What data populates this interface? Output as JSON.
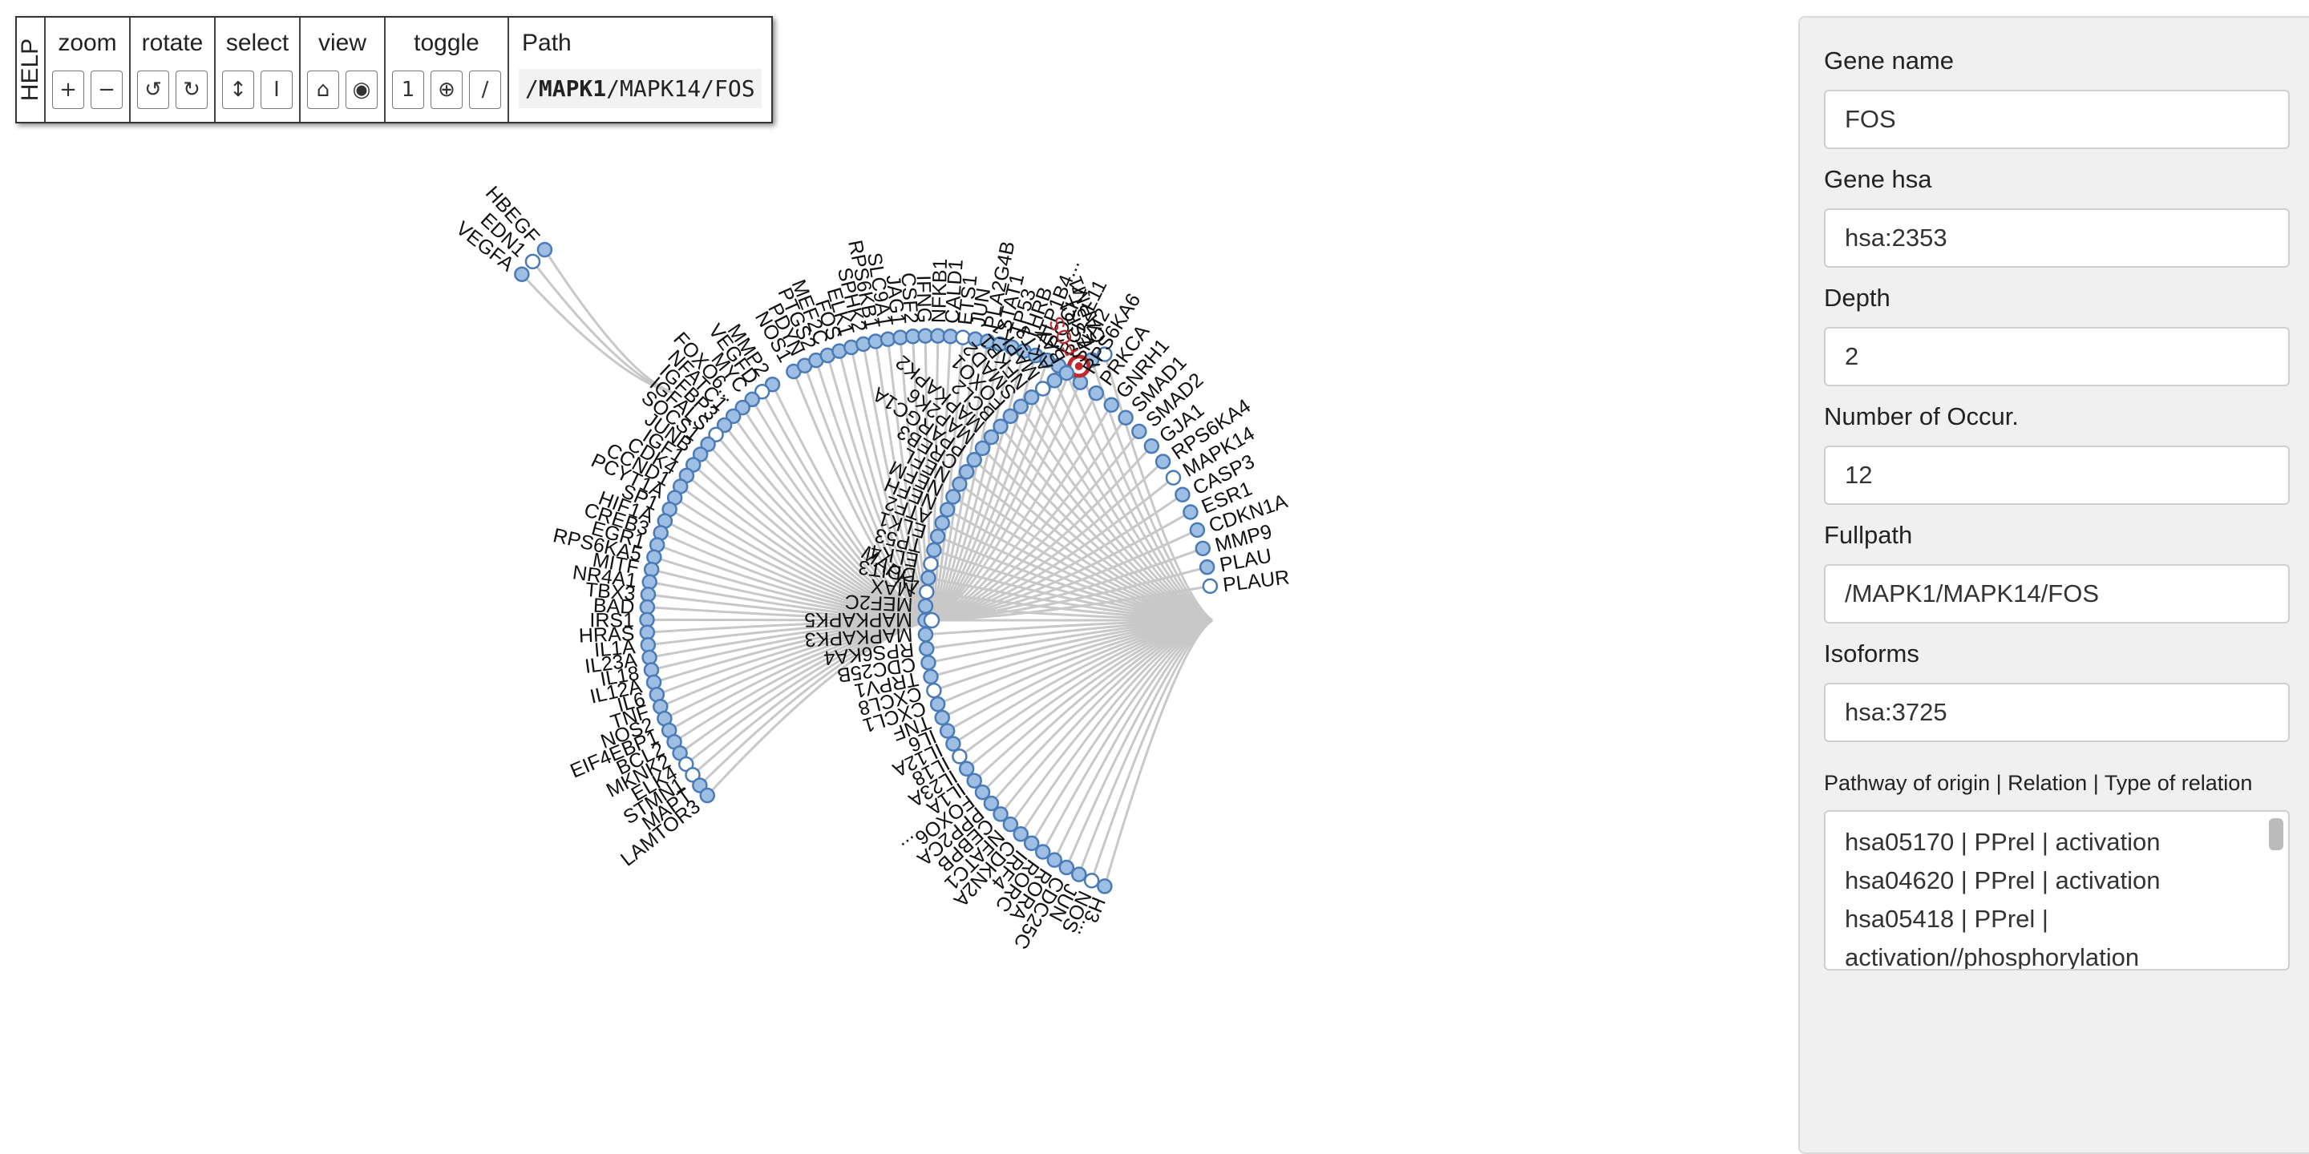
{
  "toolbar": {
    "help_label": "HELP",
    "groups": {
      "zoom": {
        "label": "zoom",
        "buttons": [
          "+",
          "−"
        ]
      },
      "rotate": {
        "label": "rotate",
        "buttons": [
          "↺",
          "↻"
        ]
      },
      "select": {
        "label": "select",
        "buttons": [
          "↕",
          "I"
        ]
      },
      "view": {
        "label": "view",
        "buttons": [
          "⌂",
          "◉"
        ]
      },
      "toggle": {
        "label": "toggle",
        "buttons": [
          "1",
          "⊕",
          "/"
        ]
      }
    },
    "path": {
      "label": "Path",
      "segments": [
        "/",
        "MAPK1",
        "/MAPK14/FOS"
      ]
    }
  },
  "graph": {
    "root": "MAPK1",
    "mid_node": "MAPK14",
    "selected": "FOS",
    "upper_left_genes": [
      "HBEGF",
      "EDN1",
      "VEGFA"
    ],
    "left_ring_genes": [
      "MMP2",
      "VEGFD",
      "MYC",
      "FOXO6...",
      "NFATC1",
      "IGFBP3",
      "IGFALS",
      "SOCS1",
      "JUNB",
      "IGF1",
      "CDK4",
      "CCND1",
      "PCYT1A",
      "SP1",
      "HIF1A",
      "CREB3",
      "EGR1",
      "RPS6KA5",
      "MITF",
      "NR4A1",
      "TBX3",
      "BAD",
      "IRS1",
      "HRAS",
      "IL1A",
      "IL23A",
      "IL18",
      "IL12A",
      "IL6",
      "TNF",
      "NOS2",
      "EIF4EBP1",
      "BCL2",
      "MKNK2",
      "ELK4",
      "STMN1",
      "MAPT",
      "LAMTOR3"
    ],
    "top_ring_genes": [
      "NOS1",
      "PDYN",
      "PTGS2",
      "MEF2C",
      "FOS",
      "ELK1",
      "SPHK2",
      "RPS6KB1",
      "SLC9A1",
      "JAG1",
      "CSF2",
      "IFNG",
      "NFKB1",
      "CALD1",
      "ETS1",
      "JUN",
      "PLA2G4B",
      "STAT1",
      "TP53",
      "THRB",
      "ATP1B4...",
      "ROCK1",
      "BCL2L11",
      "SNAI2"
    ],
    "right_ring_genes": [
      "RPS6KA6",
      "PRKCA",
      "GNRH1",
      "SMAD1",
      "SMAD2",
      "GJA1",
      "RPS6KA4",
      "MAPK14",
      "CASP3",
      "ESR1",
      "CDKN1A",
      "MMP9",
      "PLAU",
      "PLAUR"
    ],
    "far_right_genes": [
      "CARM1",
      "ESR1",
      "FOS",
      "BAX",
      "AKT3",
      "MAPK1",
      "NFKB1",
      "SMAD2",
      "FOXO1",
      "BCL2",
      "MAPKAPK2",
      "MAP2K6",
      "PPARGC1A",
      "CREB3",
      "NEFL",
      "NEFM",
      "NEFH",
      "ATF2",
      "ELK1",
      "TP53",
      "ELK4",
      "DDIT3",
      "MAX",
      "MEF2C",
      "MAPKAPK5",
      "MAPKAPK3",
      "RPS6KA4",
      "CDC25B",
      "TRPV1",
      "CXCL8",
      "CXCL1",
      "TNF",
      "IL6",
      "IL12A",
      "IL18",
      "IL23A",
      "IL1A",
      "FOXO6...",
      "PPP2CA",
      "CEBPB",
      "NFATC1",
      "CDKN2A",
      "IRF4",
      "RORC",
      "RORA",
      "CDC25C",
      "JUN",
      "NOS",
      "H3..."
    ],
    "colors": {
      "node_fill": "#9ebfe3",
      "node_stroke": "#4a7bb7",
      "link": "#c8c8c8",
      "selected": "#c0282d"
    }
  },
  "panel": {
    "gene_name": {
      "label": "Gene name",
      "value": "FOS"
    },
    "gene_hsa": {
      "label": "Gene hsa",
      "value": "hsa:2353"
    },
    "depth": {
      "label": "Depth",
      "value": "2"
    },
    "occurrences": {
      "label": "Number of Occur.",
      "value": "12"
    },
    "fullpath": {
      "label": "Fullpath",
      "value": "/MAPK1/MAPK14/FOS"
    },
    "isoforms": {
      "label": "Isoforms",
      "value": "hsa:3725"
    },
    "relations": {
      "label": "Pathway of origin | Relation | Type of relation",
      "lines": [
        "hsa05170 | PPrel | activation",
        "hsa04620 | PPrel | activation",
        "hsa05418 | PPrel |",
        "activation//phosphorylation"
      ]
    }
  }
}
